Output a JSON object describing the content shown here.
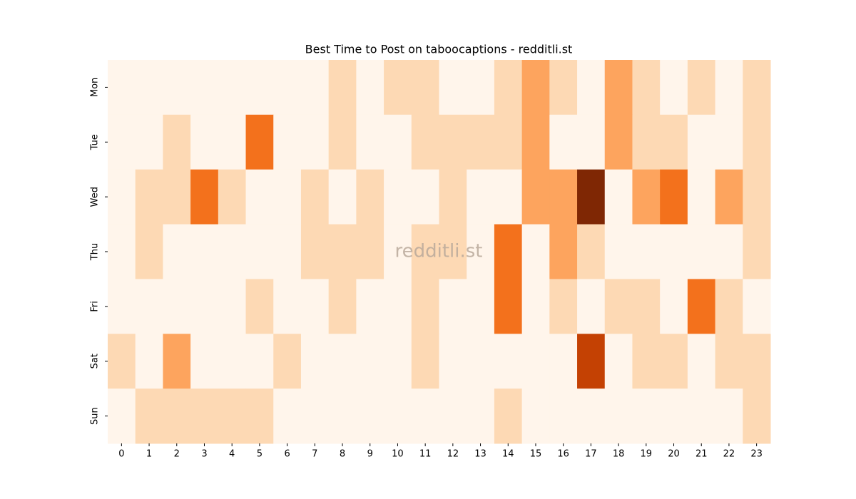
{
  "chart_data": {
    "type": "heatmap",
    "title": "Best Time to Post on taboocaptions - redditli.st",
    "watermark": "redditli.st",
    "x": [
      0,
      1,
      2,
      3,
      4,
      5,
      6,
      7,
      8,
      9,
      10,
      11,
      12,
      13,
      14,
      15,
      16,
      17,
      18,
      19,
      20,
      21,
      22,
      23
    ],
    "categories": [
      "Mon",
      "Tue",
      "Wed",
      "Thu",
      "Fri",
      "Sat",
      "Sun"
    ],
    "values": [
      [
        0,
        0,
        0,
        0,
        0,
        0,
        0,
        0,
        1,
        0,
        1,
        1,
        0,
        0,
        1,
        2,
        1,
        0,
        2,
        1,
        0,
        1,
        0,
        1
      ],
      [
        0,
        0,
        1,
        0,
        0,
        3,
        0,
        0,
        1,
        0,
        0,
        1,
        1,
        1,
        1,
        2,
        0,
        0,
        2,
        1,
        1,
        0,
        0,
        1
      ],
      [
        0,
        1,
        1,
        3,
        1,
        0,
        0,
        1,
        0,
        1,
        0,
        0,
        1,
        0,
        0,
        2,
        2,
        5,
        0,
        2,
        3,
        0,
        2,
        1
      ],
      [
        0,
        1,
        0,
        0,
        0,
        0,
        0,
        1,
        1,
        1,
        0,
        1,
        1,
        0,
        3,
        0,
        2,
        1,
        0,
        0,
        0,
        0,
        0,
        1
      ],
      [
        0,
        0,
        0,
        0,
        0,
        1,
        0,
        0,
        1,
        0,
        0,
        1,
        0,
        0,
        3,
        0,
        1,
        0,
        1,
        1,
        0,
        3,
        1,
        0
      ],
      [
        1,
        0,
        2,
        0,
        0,
        0,
        1,
        0,
        0,
        0,
        0,
        1,
        0,
        0,
        0,
        0,
        0,
        4,
        0,
        1,
        1,
        0,
        1,
        1
      ],
      [
        0,
        1,
        1,
        1,
        1,
        1,
        0,
        0,
        0,
        0,
        0,
        0,
        0,
        0,
        1,
        0,
        0,
        0,
        0,
        0,
        0,
        0,
        0,
        1
      ]
    ],
    "vmin": 0,
    "vmax": 5,
    "colors": [
      "#fff5eb",
      "#fdd9b4",
      "#fda45e",
      "#f3711c",
      "#c44103",
      "#7f2704"
    ]
  }
}
